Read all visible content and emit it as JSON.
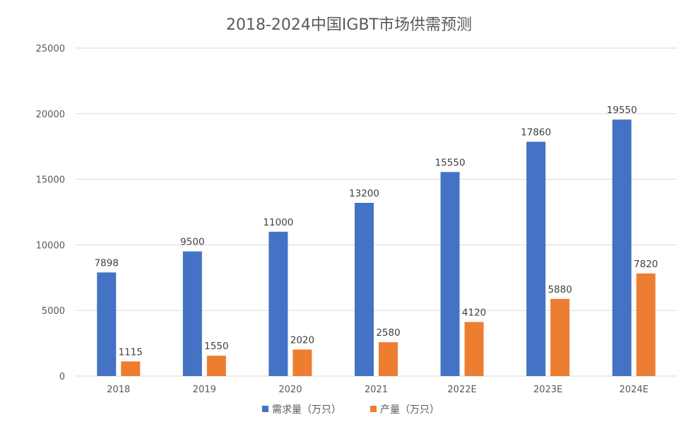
{
  "chart_data": {
    "type": "bar",
    "title": "2018-2024中国IGBT市场供需预测",
    "xlabel": "",
    "ylabel": "",
    "categories": [
      "2018",
      "2019",
      "2020",
      "2021",
      "2022E",
      "2023E",
      "2024E"
    ],
    "series": [
      {
        "name": "需求量（万只）",
        "color": "#4472c4",
        "values": [
          7898,
          9500,
          11000,
          13200,
          15550,
          17860,
          19550
        ]
      },
      {
        "name": "产量（万只）",
        "color": "#ed7d31",
        "values": [
          1115,
          1550,
          2020,
          2580,
          4120,
          5880,
          7820
        ]
      }
    ],
    "ylim": [
      0,
      25000
    ],
    "yticks": [
      0,
      5000,
      10000,
      15000,
      20000,
      25000
    ],
    "grid": true,
    "legend": "bottom"
  }
}
